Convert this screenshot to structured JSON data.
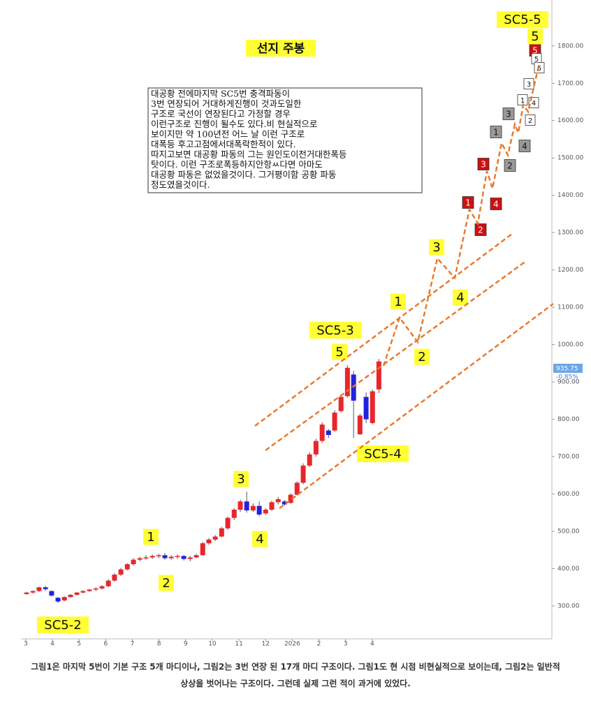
{
  "chart_data": {
    "type": "candlestick",
    "title": "선지 주봉",
    "x": [
      3.03,
      3.27,
      3.5,
      3.74,
      3.97,
      4.21,
      4.45,
      4.68,
      4.92,
      5.15,
      5.39,
      5.63,
      5.86,
      6.1,
      6.33,
      6.57,
      6.81,
      7.04,
      7.28,
      7.51,
      7.75,
      7.99,
      8.22,
      8.46,
      8.69,
      8.93,
      9.17,
      9.4,
      9.64,
      9.87,
      10.11,
      10.35,
      10.58,
      10.82,
      11.05,
      11.29,
      11.53,
      11.76,
      12.0,
      12.23,
      12.47,
      12.71,
      12.94,
      13.18,
      13.41,
      13.65,
      13.89,
      14.12,
      14.36,
      14.59,
      14.83,
      15.07,
      15.3,
      15.54,
      15.77,
      16.01,
      16.25
    ],
    "open": [
      332,
      336,
      340,
      350,
      340,
      322,
      315,
      324,
      330,
      336,
      340,
      344,
      347,
      353,
      368,
      384,
      398,
      412,
      424,
      428,
      430,
      434,
      436,
      428,
      432,
      434,
      426,
      430,
      436,
      468,
      478,
      486,
      508,
      536,
      558,
      580,
      556,
      568,
      548,
      558,
      578,
      580,
      576,
      598,
      630,
      676,
      706,
      742,
      770,
      770,
      822,
      862,
      920,
      760,
      860,
      790,
      880
    ],
    "high": [
      338,
      342,
      352,
      354,
      342,
      324,
      326,
      332,
      338,
      342,
      346,
      350,
      356,
      372,
      388,
      402,
      415,
      428,
      432,
      436,
      438,
      440,
      442,
      436,
      438,
      436,
      434,
      440,
      472,
      482,
      490,
      512,
      540,
      562,
      585,
      606,
      575,
      580,
      562,
      582,
      592,
      584,
      602,
      634,
      682,
      712,
      748,
      792,
      774,
      824,
      866,
      945,
      930,
      815,
      872,
      880,
      962
    ],
    "low": [
      330,
      333,
      338,
      340,
      325,
      308,
      313,
      322,
      328,
      334,
      338,
      340,
      344,
      350,
      365,
      380,
      395,
      408,
      420,
      424,
      426,
      428,
      424,
      424,
      426,
      422,
      420,
      428,
      434,
      464,
      474,
      484,
      504,
      530,
      552,
      550,
      552,
      540,
      544,
      554,
      572,
      568,
      574,
      596,
      626,
      672,
      700,
      736,
      750,
      766,
      818,
      858,
      750,
      758,
      790,
      786,
      870
    ],
    "close": [
      336,
      340,
      350,
      345,
      328,
      312,
      324,
      330,
      336,
      340,
      344,
      347,
      353,
      368,
      384,
      398,
      412,
      424,
      428,
      430,
      434,
      436,
      428,
      432,
      434,
      426,
      430,
      436,
      468,
      478,
      486,
      508,
      536,
      558,
      580,
      556,
      568,
      545,
      558,
      578,
      586,
      572,
      598,
      630,
      676,
      706,
      742,
      786,
      758,
      818,
      860,
      938,
      850,
      810,
      800,
      875,
      955
    ],
    "up_color": "#e8262b",
    "down_color": "#2222dd",
    "xlim": [
      2.82,
      22.74
    ],
    "ylim": [
      212,
      1923
    ],
    "xticks": [
      3,
      4,
      5,
      6,
      7,
      8,
      9,
      10,
      11,
      12,
      {
        "value": 13,
        "label": "2026"
      },
      {
        "value": 14,
        "label": "2"
      },
      {
        "value": 15,
        "label": "3"
      },
      {
        "value": 16,
        "label": "4"
      }
    ],
    "yticks": [
      {
        "value": 300,
        "label": "300.00"
      },
      {
        "value": 400,
        "label": "400.00"
      },
      {
        "value": 500,
        "label": "500.00"
      },
      {
        "value": 600,
        "label": "600.00"
      },
      {
        "value": 700,
        "label": "700.00"
      },
      {
        "value": 800,
        "label": "800.00"
      },
      {
        "value": 900,
        "label": "900.00"
      },
      {
        "value": 1000,
        "label": "1000.00"
      },
      {
        "value": 1100,
        "label": "1100.00"
      },
      {
        "value": 1200,
        "label": "1200.00"
      },
      {
        "value": 1300,
        "label": "1300.00"
      },
      {
        "value": 1400,
        "label": "1400.00"
      },
      {
        "value": 1500,
        "label": "1500.00"
      },
      {
        "value": 1600,
        "label": "1600.00"
      },
      {
        "value": 1700,
        "label": "1700.00"
      },
      {
        "value": 1800,
        "label": "1800.00"
      }
    ],
    "last_value": 935.75,
    "last_change": {
      "value": -0.85,
      "label": "-0.85%"
    },
    "annotations": [
      "SC5-2",
      "1",
      "2",
      "3",
      "4",
      "SC5-3",
      "5",
      "1",
      "2",
      "3",
      "4",
      "SC5-4",
      "1",
      "2",
      "3",
      "4",
      "1",
      "2",
      "3",
      "4",
      "1",
      "2",
      "3",
      "4",
      "5",
      "5",
      "5",
      "SC5-5",
      "5"
    ],
    "note": [
      "대공황 전에마지막 SC5번 충격파동이",
      "3번 연장되어 거대하게진행이 것과도일한",
      "구조로 국선이 연장된다고 가정할 경우",
      "이런구조로 진행이 될수도 있다.비 현실적으로",
      "보이지만 약 100년전 어느 날 이런 구조로",
      "대폭등 후고고점에서대폭락한적이 있다.",
      "따지고보면 대공황 파동의 그는 원인도이전거대한폭등",
      "탓이다. 이런 구조로폭등하지안항ㅆ다면 아마도",
      "대공황 파동은 없었을것이다. 그거평이함 공황 파동",
      "정도였을것이다."
    ]
  },
  "caption": [
    "그림1은 마지막 5번이 기본 구조 5개 마디이나, 그림2는 3번 연장 된 17개 마디 구조이다. 그림1도 현 시점 비현실적으로 보이는데, 그림2는 일반적",
    "상상을 벗어나는 구조이다. 그런데 실제 그런 적이 과거에 있었다."
  ]
}
